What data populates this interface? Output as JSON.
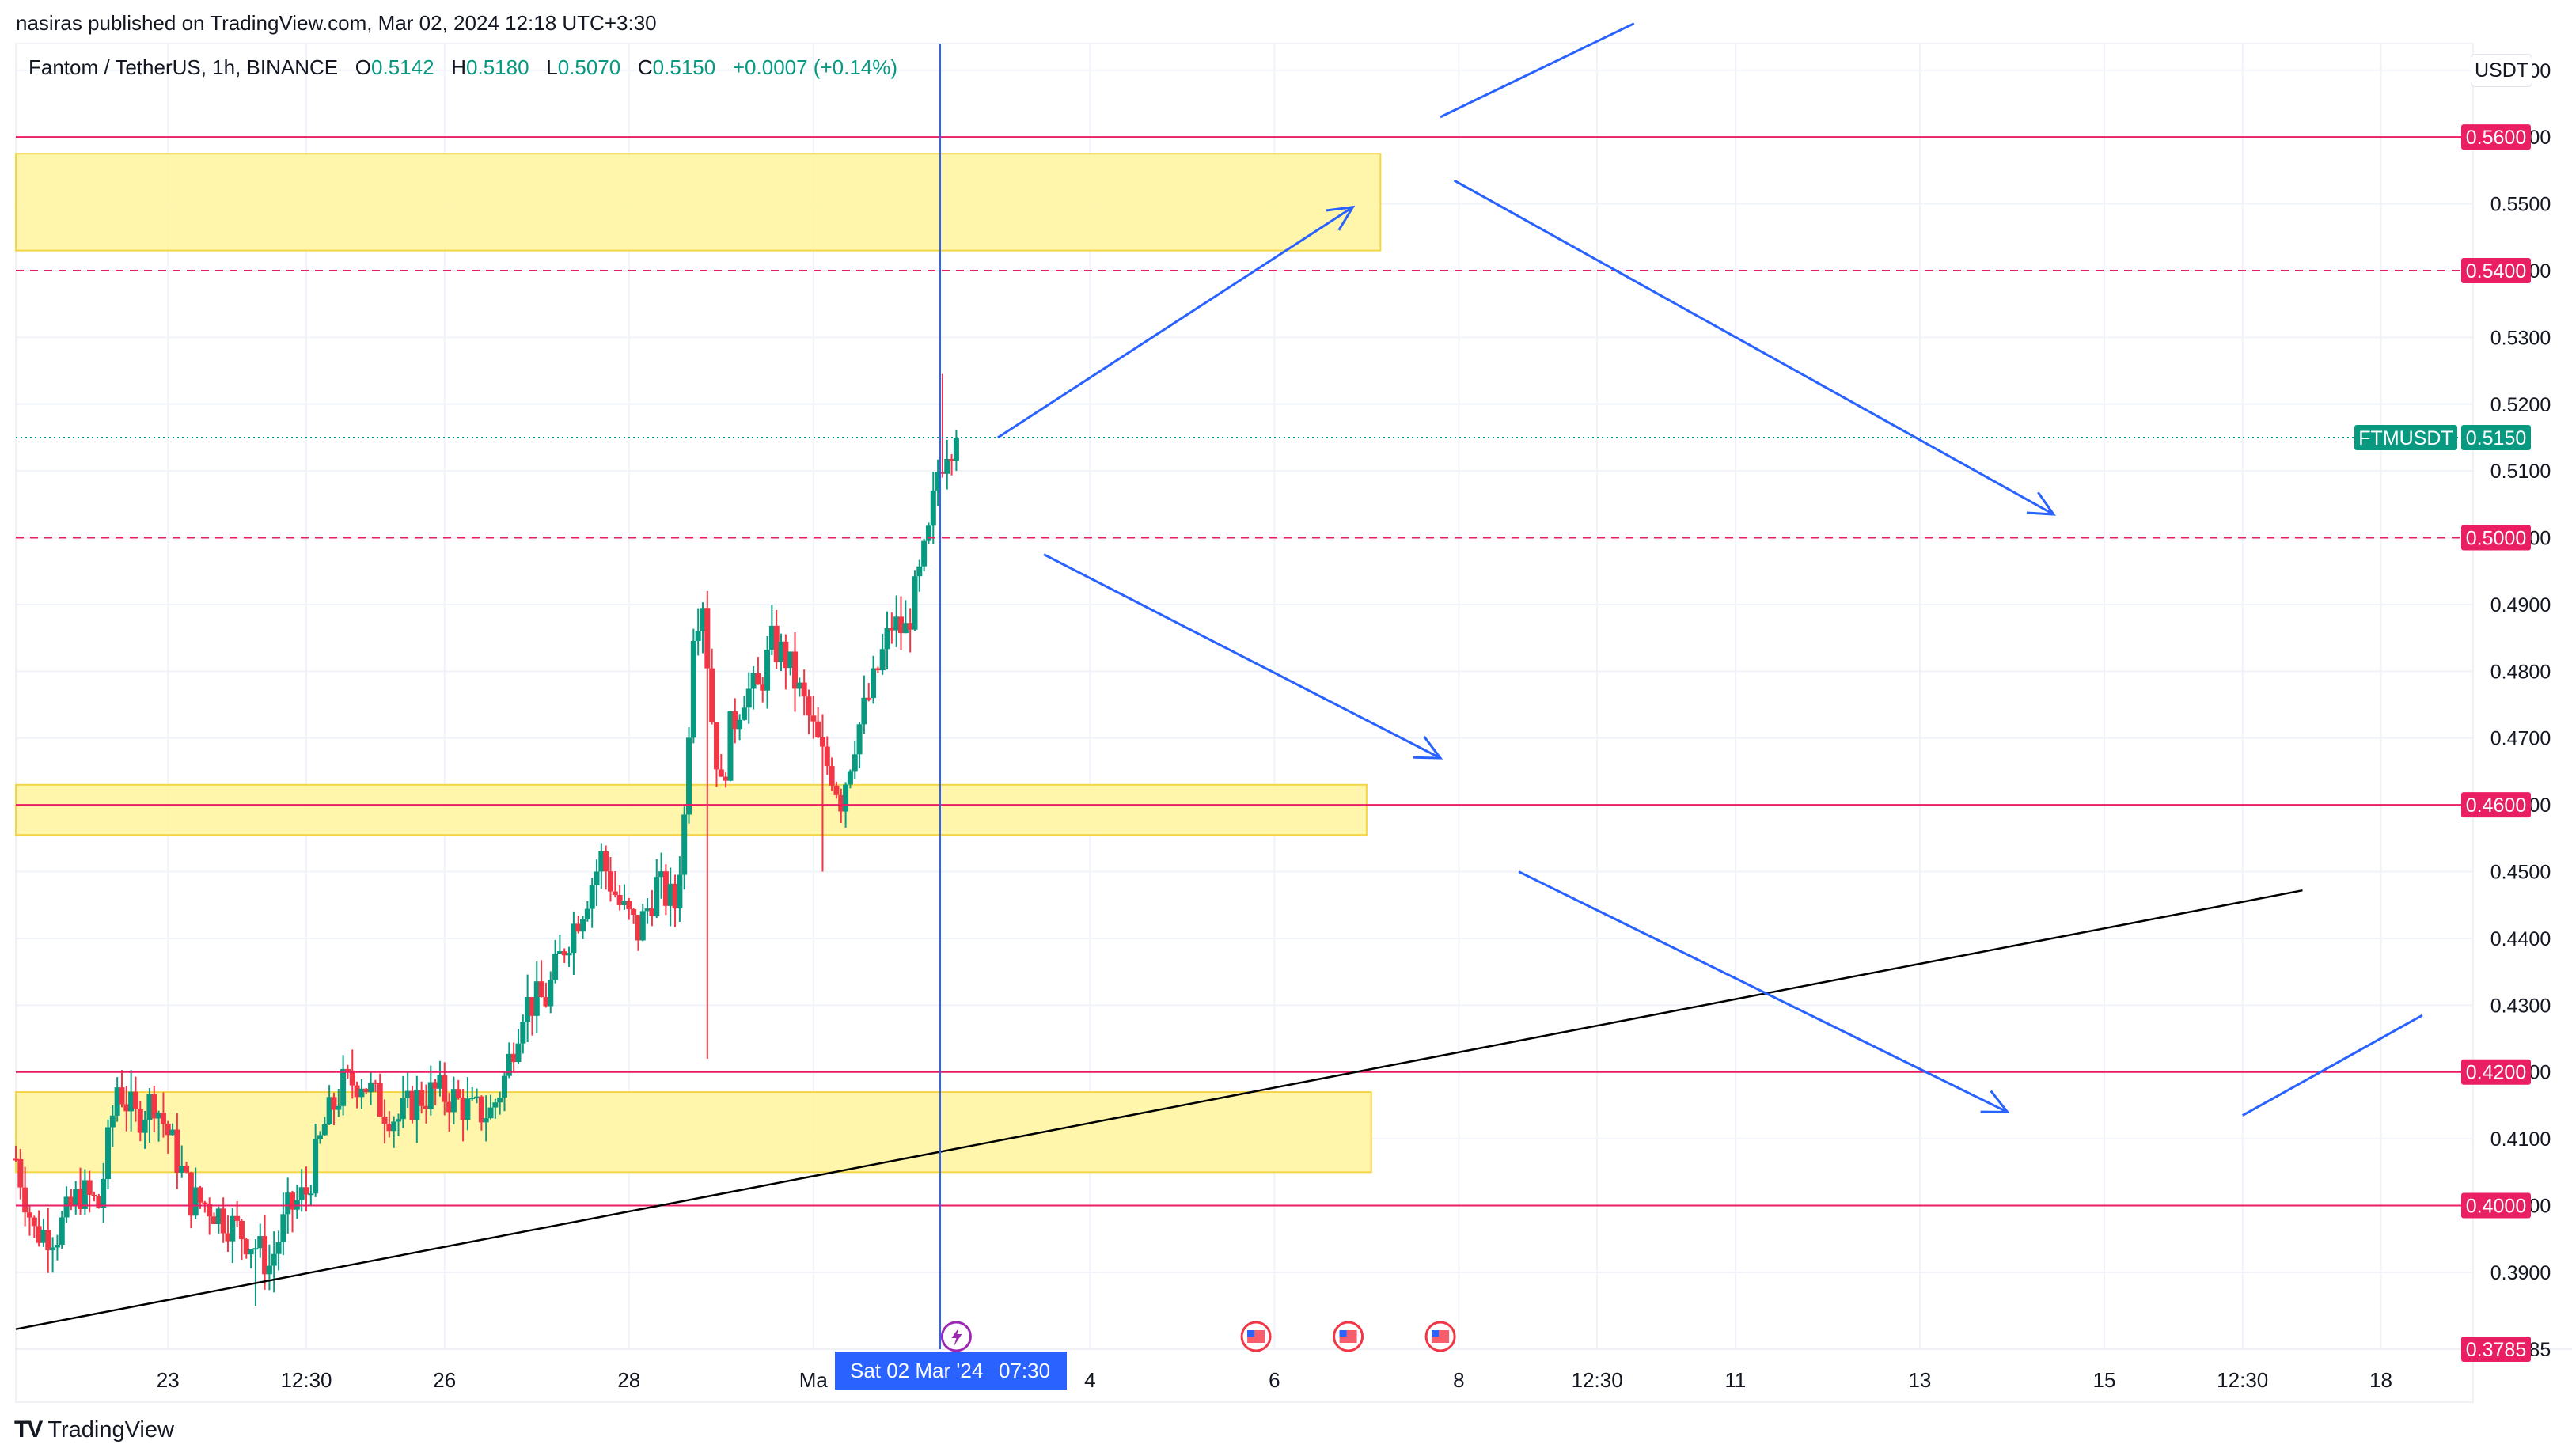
{
  "header": {
    "published": "nasiras published on TradingView.com, Mar 02, 2024 12:18 UTC+3:30",
    "symbol": "Fantom / TetherUS, 1h, BINANCE",
    "o_label": "O",
    "o_value": "0.5142",
    "h_label": "H",
    "h_value": "0.5180",
    "l_label": "L",
    "l_value": "0.5070",
    "c_label": "C",
    "c_value": "0.5150",
    "change": "+0.0007 (+0.14%)"
  },
  "currency_button": "USDT",
  "brand": {
    "logo": "TV",
    "name": "TradingView"
  },
  "colors": {
    "up": "#089981",
    "down": "#f23645",
    "level": "#e91e63",
    "zone": "#fff59d",
    "arrow": "#2962ff",
    "trend": "#000000"
  },
  "chart_data": {
    "type": "candlestick",
    "symbol": "FTMUSDT",
    "timeframe": "1h",
    "last_price": 0.515,
    "last_price_label": "FTMUSDT",
    "ylim": [
      0.3785,
      0.574
    ],
    "y_ticks": [
      0.57,
      0.56,
      0.55,
      0.54,
      0.53,
      0.52,
      0.51,
      0.5,
      0.49,
      0.48,
      0.47,
      0.46,
      0.45,
      0.44,
      0.43,
      0.42,
      0.41,
      0.4,
      0.39,
      0.3785
    ],
    "y_tick_labels": [
      "0.5700",
      "0.5600",
      "0.5500",
      "0.5400",
      "0.5300",
      "0.5200",
      "0.5100",
      "0.5000",
      "0.4900",
      "0.4800",
      "0.4700",
      "0.4600",
      "0.4500",
      "0.4400",
      "0.4300",
      "0.4200",
      "0.4100",
      "0.4000",
      "0.3900",
      "0.3785"
    ],
    "x_ticks": [
      {
        "label": "23",
        "t": 33
      },
      {
        "label": "12:30",
        "t": 63
      },
      {
        "label": "26",
        "t": 93
      },
      {
        "label": "28",
        "t": 133
      },
      {
        "label": "Ma",
        "t": 173
      },
      {
        "label": "4",
        "t": 233
      },
      {
        "label": "6",
        "t": 273
      },
      {
        "label": "8",
        "t": 313
      },
      {
        "label": "12:30",
        "t": 343
      },
      {
        "label": "11",
        "t": 373
      },
      {
        "label": "13",
        "t": 413
      },
      {
        "label": "15",
        "t": 453
      },
      {
        "label": "12:30",
        "t": 483
      },
      {
        "label": "18",
        "t": 513
      }
    ],
    "x_range": [
      0,
      533
    ],
    "crosshair": {
      "t": 200.5,
      "label": "Sat 02 Mar '24",
      "time": "07:30"
    },
    "price_levels": [
      {
        "price": 0.56,
        "label": "0.5600",
        "style": "solid"
      },
      {
        "price": 0.54,
        "label": "0.5400",
        "style": "dashed"
      },
      {
        "price": 0.5,
        "label": "0.5000",
        "style": "dashed"
      },
      {
        "price": 0.46,
        "label": "0.4600",
        "style": "solid"
      },
      {
        "price": 0.42,
        "label": "0.4200",
        "style": "solid"
      },
      {
        "price": 0.4,
        "label": "0.4000",
        "style": "solid"
      },
      {
        "price": 0.3785,
        "label": "0.3785",
        "style": "none"
      }
    ],
    "zones": [
      {
        "t0": 0,
        "t1": 296,
        "top": 0.5575,
        "bottom": 0.543
      },
      {
        "t0": 0,
        "t1": 293,
        "top": 0.463,
        "bottom": 0.4555
      },
      {
        "t0": 0,
        "t1": 294,
        "top": 0.417,
        "bottom": 0.405
      }
    ],
    "trendline": {
      "t0": 0,
      "p0": 0.3815,
      "t1": 496,
      "p1": 0.4472
    },
    "arrows": [
      {
        "t0": 309,
        "p0": 0.563,
        "t1": 351,
        "p1": 0.577,
        "head": false
      },
      {
        "t0": 213,
        "p0": 0.515,
        "t1": 290,
        "p1": 0.5495,
        "head": true
      },
      {
        "t0": 312,
        "p0": 0.5535,
        "t1": 442,
        "p1": 0.5035,
        "head": true
      },
      {
        "t0": 223,
        "p0": 0.4975,
        "t1": 309,
        "p1": 0.467,
        "head": true
      },
      {
        "t0": 326,
        "p0": 0.45,
        "t1": 432,
        "p1": 0.414,
        "head": true
      },
      {
        "t0": 483,
        "p0": 0.4135,
        "t1": 522,
        "p1": 0.4285,
        "head": false
      }
    ],
    "event_markers": [
      {
        "t": 204,
        "type": "flash"
      },
      {
        "t": 269,
        "type": "flag"
      },
      {
        "t": 289,
        "type": "flag"
      },
      {
        "t": 309,
        "type": "flag"
      }
    ],
    "price_anchors": [
      [
        0,
        0.407
      ],
      [
        4,
        0.396
      ],
      [
        9,
        0.396
      ],
      [
        14,
        0.402
      ],
      [
        18,
        0.4
      ],
      [
        22,
        0.418
      ],
      [
        26,
        0.413
      ],
      [
        30,
        0.416
      ],
      [
        34,
        0.409
      ],
      [
        38,
        0.401
      ],
      [
        42,
        0.4
      ],
      [
        47,
        0.397
      ],
      [
        52,
        0.394
      ],
      [
        55,
        0.391
      ],
      [
        59,
        0.399
      ],
      [
        63,
        0.402
      ],
      [
        67,
        0.412
      ],
      [
        71,
        0.418
      ],
      [
        75,
        0.419
      ],
      [
        79,
        0.415
      ],
      [
        83,
        0.413
      ],
      [
        87,
        0.416
      ],
      [
        91,
        0.417
      ],
      [
        95,
        0.416
      ],
      [
        99,
        0.414
      ],
      [
        103,
        0.414
      ],
      [
        106,
        0.419
      ],
      [
        110,
        0.43
      ],
      [
        115,
        0.431
      ],
      [
        119,
        0.439
      ],
      [
        123,
        0.445
      ],
      [
        127,
        0.452
      ],
      [
        131,
        0.445
      ],
      [
        135,
        0.441
      ],
      [
        139,
        0.448
      ],
      [
        143,
        0.445
      ],
      [
        145,
        0.458
      ],
      [
        147,
        0.487
      ],
      [
        149,
        0.491
      ],
      [
        151,
        0.473
      ],
      [
        153,
        0.462
      ],
      [
        155,
        0.471
      ],
      [
        158,
        0.477
      ],
      [
        161,
        0.477
      ],
      [
        164,
        0.484
      ],
      [
        167,
        0.482
      ],
      [
        171,
        0.475
      ],
      [
        175,
        0.467
      ],
      [
        177,
        0.465
      ],
      [
        179,
        0.461
      ],
      [
        182,
        0.47
      ],
      [
        186,
        0.478
      ],
      [
        190,
        0.487
      ],
      [
        193,
        0.486
      ],
      [
        196,
        0.494
      ],
      [
        198,
        0.5
      ],
      [
        200,
        0.51
      ],
      [
        202,
        0.514
      ],
      [
        204,
        0.515
      ]
    ]
  }
}
